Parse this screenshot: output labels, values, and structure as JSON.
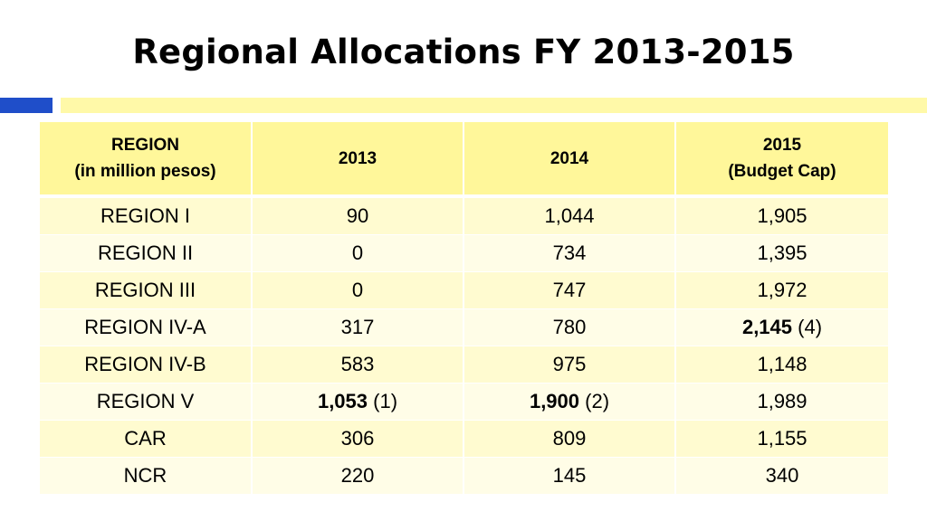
{
  "title": "Regional Allocations FY 2013-2015",
  "accent_colors": {
    "blue_bar": "#1f4ec9",
    "yellow_bar": "#fff9a8",
    "header_fill": "#fff79a"
  },
  "table": {
    "headers": [
      {
        "line1": "REGION",
        "line2": "(in million pesos)"
      },
      {
        "line1": "2013",
        "line2": ""
      },
      {
        "line1": "2014",
        "line2": ""
      },
      {
        "line1": "2015",
        "line2": "(Budget Cap)"
      }
    ],
    "rows": [
      {
        "region": "REGION I",
        "y2013": {
          "value": "90",
          "note": ""
        },
        "y2014": {
          "value": "1,044",
          "note": ""
        },
        "y2015": {
          "value": "1,905",
          "note": ""
        }
      },
      {
        "region": "REGION II",
        "y2013": {
          "value": "0",
          "note": ""
        },
        "y2014": {
          "value": "734",
          "note": ""
        },
        "y2015": {
          "value": "1,395",
          "note": ""
        }
      },
      {
        "region": "REGION III",
        "y2013": {
          "value": "0",
          "note": ""
        },
        "y2014": {
          "value": "747",
          "note": ""
        },
        "y2015": {
          "value": "1,972",
          "note": ""
        }
      },
      {
        "region": "REGION IV-A",
        "y2013": {
          "value": "317",
          "note": ""
        },
        "y2014": {
          "value": "780",
          "note": ""
        },
        "y2015": {
          "value": "2,145",
          "note": "(4)"
        }
      },
      {
        "region": "REGION IV-B",
        "y2013": {
          "value": "583",
          "note": ""
        },
        "y2014": {
          "value": "975",
          "note": ""
        },
        "y2015": {
          "value": "1,148",
          "note": ""
        }
      },
      {
        "region": "REGION V",
        "y2013": {
          "value": "1,053",
          "note": "(1)"
        },
        "y2014": {
          "value": "1,900",
          "note": "(2)"
        },
        "y2015": {
          "value": "1,989",
          "note": ""
        }
      },
      {
        "region": "CAR",
        "y2013": {
          "value": "306",
          "note": ""
        },
        "y2014": {
          "value": "809",
          "note": ""
        },
        "y2015": {
          "value": "1,155",
          "note": ""
        }
      },
      {
        "region": "NCR",
        "y2013": {
          "value": "220",
          "note": ""
        },
        "y2014": {
          "value": "145",
          "note": ""
        },
        "y2015": {
          "value": "340",
          "note": ""
        }
      }
    ]
  }
}
